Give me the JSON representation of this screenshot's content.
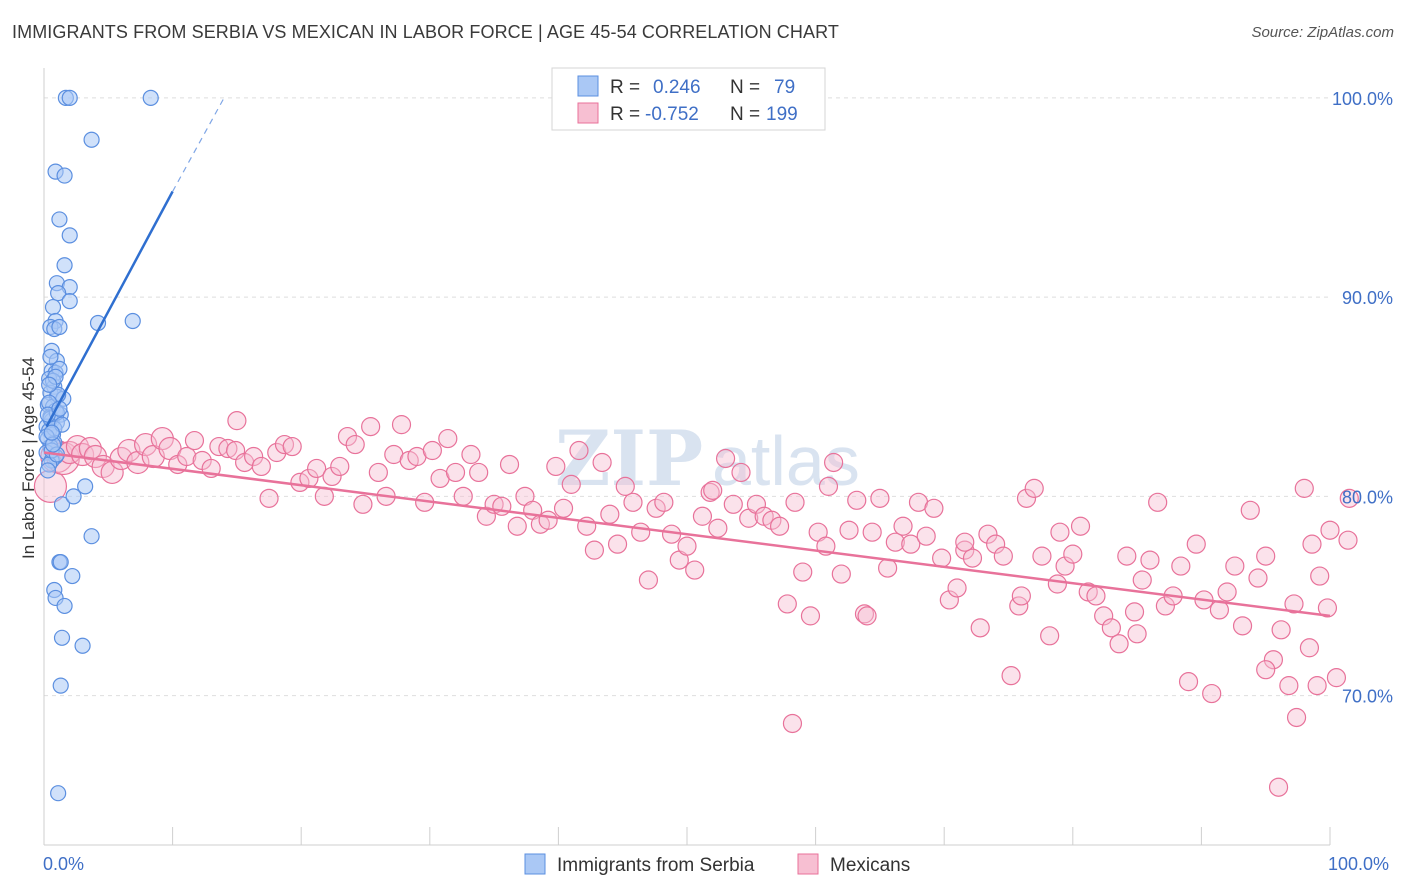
{
  "header": {
    "title": "IMMIGRANTS FROM SERBIA VS MEXICAN IN LABOR FORCE | AGE 45-54 CORRELATION CHART",
    "source": "Source: ZipAtlas.com"
  },
  "colors": {
    "blue": "#5b8fe0",
    "blue_fill": "#aac8f5",
    "pink": "#e8729a",
    "pink_fill": "#f7bfd2",
    "tick": "#3f6fc6"
  },
  "chart_data": {
    "type": "scatter",
    "title": "IMMIGRANTS FROM SERBIA VS MEXICAN IN LABOR FORCE | AGE 45-54 CORRELATION CHART",
    "xlabel": "",
    "ylabel": "In Labor Force | Age 45-54",
    "xlim": [
      0,
      100
    ],
    "ylim": [
      62.5,
      101.5
    ],
    "x_tick_labels": [
      "0.0%",
      "100.0%"
    ],
    "y_ticks": [
      70,
      80,
      90,
      100
    ],
    "y_tick_labels": [
      "70.0%",
      "80.0%",
      "90.0%",
      "100.0%"
    ],
    "watermark": {
      "bold": "ZIP",
      "light": "atlas"
    },
    "legend": {
      "rows": [
        {
          "r_label": "R =",
          "r_value": "0.246",
          "n_label": "N =",
          "n_value": "79"
        },
        {
          "r_label": "R =",
          "r_value": "-0.752",
          "n_label": "N =",
          "n_value": "199"
        }
      ]
    },
    "series": [
      {
        "name": "Immigrants from Serbia",
        "trend": {
          "x": [
            0.2,
            10.0
          ],
          "y": [
            83.5,
            95.3
          ],
          "dashed_to": [
            14.0,
            100.0
          ]
        },
        "points": [
          [
            1.7,
            100
          ],
          [
            2.0,
            100
          ],
          [
            8.3,
            100
          ],
          [
            3.7,
            97.9
          ],
          [
            0.9,
            96.3
          ],
          [
            1.6,
            96.1
          ],
          [
            1.2,
            93.9
          ],
          [
            2.0,
            93.1
          ],
          [
            1.6,
            91.6
          ],
          [
            1.0,
            90.7
          ],
          [
            2.0,
            90.5
          ],
          [
            1.1,
            90.2
          ],
          [
            2.0,
            89.8
          ],
          [
            0.7,
            89.5
          ],
          [
            0.9,
            88.8
          ],
          [
            4.2,
            88.7
          ],
          [
            6.9,
            88.8
          ],
          [
            0.5,
            88.5
          ],
          [
            0.8,
            88.4
          ],
          [
            1.2,
            88.5
          ],
          [
            0.6,
            87.3
          ],
          [
            1.0,
            86.8
          ],
          [
            0.6,
            86.3
          ],
          [
            0.9,
            86.2
          ],
          [
            1.2,
            86.4
          ],
          [
            0.4,
            85.9
          ],
          [
            0.8,
            85.5
          ],
          [
            0.5,
            85.2
          ],
          [
            1.0,
            85.0
          ],
          [
            1.5,
            84.9
          ],
          [
            0.3,
            84.6
          ],
          [
            0.7,
            84.5
          ],
          [
            0.9,
            84.3
          ],
          [
            0.5,
            84.0
          ],
          [
            1.3,
            84.1
          ],
          [
            0.6,
            83.8
          ],
          [
            1.0,
            83.7
          ],
          [
            0.2,
            83.5
          ],
          [
            0.4,
            83.3
          ],
          [
            0.7,
            83.1
          ],
          [
            0.3,
            82.9
          ],
          [
            0.8,
            82.7
          ],
          [
            0.5,
            82.5
          ],
          [
            0.2,
            82.2
          ],
          [
            0.9,
            82.0
          ],
          [
            0.6,
            81.8
          ],
          [
            0.4,
            81.6
          ],
          [
            0.3,
            81.3
          ],
          [
            3.2,
            80.5
          ],
          [
            1.4,
            79.6
          ],
          [
            2.3,
            80.0
          ],
          [
            3.7,
            78.0
          ],
          [
            1.2,
            76.7
          ],
          [
            2.2,
            76.0
          ],
          [
            1.3,
            76.7
          ],
          [
            0.8,
            75.3
          ],
          [
            0.9,
            74.9
          ],
          [
            1.6,
            74.5
          ],
          [
            1.4,
            72.9
          ],
          [
            3.0,
            72.5
          ],
          [
            1.3,
            70.5
          ],
          [
            1.1,
            65.1
          ],
          [
            0.5,
            83.9
          ],
          [
            1.0,
            84.2
          ],
          [
            0.7,
            85.8
          ],
          [
            1.1,
            85.1
          ],
          [
            0.4,
            84.7
          ],
          [
            0.8,
            83.4
          ],
          [
            0.6,
            82.3
          ],
          [
            1.0,
            82.1
          ],
          [
            0.3,
            84.1
          ],
          [
            0.9,
            86.0
          ],
          [
            0.5,
            87.0
          ],
          [
            1.4,
            83.6
          ],
          [
            0.2,
            83.0
          ],
          [
            0.7,
            82.6
          ],
          [
            1.2,
            84.4
          ],
          [
            0.4,
            85.6
          ],
          [
            0.6,
            83.2
          ]
        ]
      },
      {
        "name": "Mexicans",
        "trend": {
          "x": [
            0.0,
            100.0
          ],
          "y": [
            82.2,
            74.0
          ]
        },
        "points": [
          [
            0.5,
            80.5
          ],
          [
            1.0,
            82.0
          ],
          [
            1.5,
            81.9
          ],
          [
            2.0,
            82.2
          ],
          [
            2.6,
            82.5
          ],
          [
            3.0,
            82.1
          ],
          [
            3.6,
            82.4
          ],
          [
            4.0,
            82.0
          ],
          [
            4.6,
            81.5
          ],
          [
            5.3,
            81.2
          ],
          [
            6.0,
            81.9
          ],
          [
            6.6,
            82.3
          ],
          [
            7.3,
            81.7
          ],
          [
            7.9,
            82.6
          ],
          [
            8.5,
            82.0
          ],
          [
            9.2,
            82.9
          ],
          [
            9.8,
            82.4
          ],
          [
            10.4,
            81.6
          ],
          [
            11.1,
            82.0
          ],
          [
            11.7,
            82.8
          ],
          [
            12.3,
            81.8
          ],
          [
            13.0,
            81.4
          ],
          [
            13.6,
            82.5
          ],
          [
            14.3,
            82.4
          ],
          [
            14.9,
            82.3
          ],
          [
            15.0,
            83.8
          ],
          [
            15.6,
            81.7
          ],
          [
            16.3,
            82.0
          ],
          [
            16.9,
            81.5
          ],
          [
            17.5,
            79.9
          ],
          [
            18.1,
            82.2
          ],
          [
            18.7,
            82.6
          ],
          [
            19.3,
            82.5
          ],
          [
            19.9,
            80.7
          ],
          [
            20.6,
            80.9
          ],
          [
            21.2,
            81.4
          ],
          [
            21.8,
            80.0
          ],
          [
            22.4,
            81.0
          ],
          [
            23.0,
            81.5
          ],
          [
            23.6,
            83.0
          ],
          [
            24.2,
            82.6
          ],
          [
            24.8,
            79.6
          ],
          [
            25.4,
            83.5
          ],
          [
            26.0,
            81.2
          ],
          [
            26.6,
            80.0
          ],
          [
            27.2,
            82.1
          ],
          [
            27.8,
            83.6
          ],
          [
            28.4,
            81.8
          ],
          [
            29.0,
            82.0
          ],
          [
            29.6,
            79.7
          ],
          [
            30.2,
            82.3
          ],
          [
            30.8,
            80.9
          ],
          [
            31.4,
            82.9
          ],
          [
            32.0,
            81.2
          ],
          [
            32.6,
            80.0
          ],
          [
            33.2,
            82.1
          ],
          [
            33.8,
            81.2
          ],
          [
            34.4,
            79.0
          ],
          [
            35.0,
            79.6
          ],
          [
            35.6,
            79.5
          ],
          [
            36.2,
            81.6
          ],
          [
            36.8,
            78.5
          ],
          [
            37.4,
            80.0
          ],
          [
            38.0,
            79.3
          ],
          [
            38.6,
            78.6
          ],
          [
            39.2,
            78.8
          ],
          [
            39.8,
            81.5
          ],
          [
            40.4,
            79.4
          ],
          [
            41.0,
            80.6
          ],
          [
            41.6,
            82.3
          ],
          [
            42.2,
            78.5
          ],
          [
            42.8,
            77.3
          ],
          [
            43.4,
            81.7
          ],
          [
            44.0,
            79.1
          ],
          [
            44.6,
            77.6
          ],
          [
            45.2,
            80.5
          ],
          [
            45.8,
            79.7
          ],
          [
            46.4,
            78.2
          ],
          [
            47.0,
            75.8
          ],
          [
            47.6,
            79.4
          ],
          [
            48.2,
            79.7
          ],
          [
            48.8,
            78.1
          ],
          [
            49.4,
            76.8
          ],
          [
            50.0,
            77.5
          ],
          [
            50.6,
            76.3
          ],
          [
            51.2,
            79.0
          ],
          [
            51.8,
            80.2
          ],
          [
            52.4,
            78.4
          ],
          [
            53.0,
            81.9
          ],
          [
            53.6,
            79.6
          ],
          [
            54.2,
            81.2
          ],
          [
            54.8,
            78.9
          ],
          [
            55.4,
            79.6
          ],
          [
            56.0,
            79.0
          ],
          [
            56.6,
            78.8
          ],
          [
            57.2,
            78.5
          ],
          [
            57.8,
            74.6
          ],
          [
            58.4,
            79.7
          ],
          [
            59.0,
            76.2
          ],
          [
            59.6,
            74.0
          ],
          [
            60.2,
            78.2
          ],
          [
            60.8,
            77.5
          ],
          [
            61.4,
            81.7
          ],
          [
            62.0,
            76.1
          ],
          [
            62.6,
            78.3
          ],
          [
            63.2,
            79.8
          ],
          [
            63.8,
            74.1
          ],
          [
            64.4,
            78.2
          ],
          [
            65.0,
            79.9
          ],
          [
            65.6,
            76.4
          ],
          [
            66.2,
            77.7
          ],
          [
            66.8,
            78.5
          ],
          [
            67.4,
            77.6
          ],
          [
            68.0,
            79.7
          ],
          [
            68.6,
            78.0
          ],
          [
            69.2,
            79.4
          ],
          [
            69.8,
            76.9
          ],
          [
            70.4,
            74.8
          ],
          [
            71.0,
            75.4
          ],
          [
            71.6,
            77.3
          ],
          [
            72.2,
            76.9
          ],
          [
            72.8,
            73.4
          ],
          [
            73.4,
            78.1
          ],
          [
            74.0,
            77.6
          ],
          [
            74.6,
            77.0
          ],
          [
            75.2,
            71.0
          ],
          [
            75.8,
            74.5
          ],
          [
            76.4,
            79.9
          ],
          [
            77.0,
            80.4
          ],
          [
            77.6,
            77.0
          ],
          [
            78.2,
            73.0
          ],
          [
            78.8,
            75.6
          ],
          [
            79.4,
            76.5
          ],
          [
            80.0,
            77.1
          ],
          [
            80.6,
            78.5
          ],
          [
            81.2,
            75.2
          ],
          [
            81.8,
            75.0
          ],
          [
            82.4,
            74.0
          ],
          [
            83.0,
            73.4
          ],
          [
            83.6,
            72.6
          ],
          [
            84.2,
            77.0
          ],
          [
            84.8,
            74.2
          ],
          [
            85.4,
            75.8
          ],
          [
            86.0,
            76.8
          ],
          [
            86.6,
            79.7
          ],
          [
            87.2,
            74.5
          ],
          [
            87.8,
            75.0
          ],
          [
            88.4,
            76.5
          ],
          [
            89.0,
            70.7
          ],
          [
            89.6,
            77.6
          ],
          [
            90.2,
            74.8
          ],
          [
            90.8,
            70.1
          ],
          [
            91.4,
            74.3
          ],
          [
            92.0,
            75.2
          ],
          [
            92.6,
            76.5
          ],
          [
            93.2,
            73.5
          ],
          [
            93.8,
            79.3
          ],
          [
            94.4,
            75.9
          ],
          [
            95.0,
            77.0
          ],
          [
            95.6,
            71.8
          ],
          [
            96.2,
            73.3
          ],
          [
            96.8,
            70.5
          ],
          [
            97.4,
            68.9
          ],
          [
            98.0,
            80.4
          ],
          [
            98.6,
            77.6
          ],
          [
            99.2,
            76.0
          ],
          [
            99.8,
            74.4
          ],
          [
            100.0,
            78.3
          ],
          [
            58.2,
            68.6
          ],
          [
            85.0,
            73.1
          ],
          [
            61.0,
            80.5
          ],
          [
            52.0,
            80.3
          ],
          [
            64.0,
            74.0
          ],
          [
            71.6,
            77.7
          ],
          [
            79.0,
            78.2
          ],
          [
            76.0,
            75.0
          ],
          [
            95.0,
            71.3
          ],
          [
            98.4,
            72.4
          ],
          [
            99.0,
            70.5
          ],
          [
            100.5,
            70.9
          ],
          [
            96.0,
            65.4
          ],
          [
            101.5,
            79.9
          ],
          [
            101.4,
            77.8
          ],
          [
            97.2,
            74.6
          ]
        ]
      }
    ]
  }
}
